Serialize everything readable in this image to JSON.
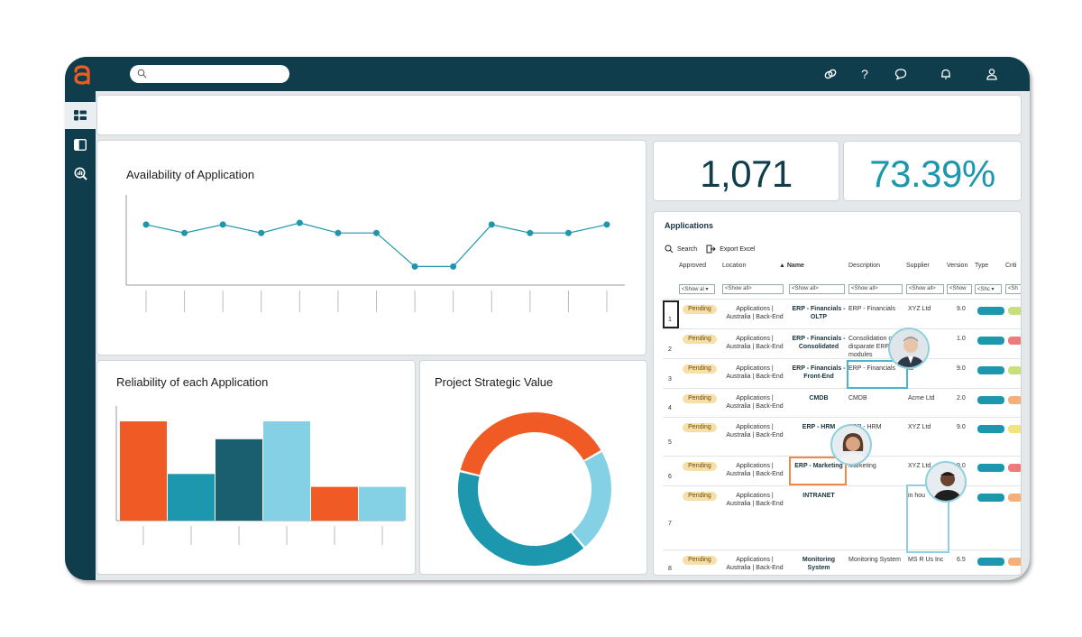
{
  "header": {
    "search_placeholder": "",
    "icons": [
      "link-icon",
      "help-icon",
      "chat-icon",
      "bell-icon",
      "user-icon"
    ]
  },
  "sidebar": {
    "items": [
      {
        "icon": "dashboard-icon",
        "active": true
      },
      {
        "icon": "panel-icon",
        "active": false
      },
      {
        "icon": "analytics-search-icon",
        "active": false
      }
    ]
  },
  "kpis": {
    "count": "1,071",
    "percent": "73.39%",
    "count_color": "#0f3d4c",
    "percent_color": "#1d97ad"
  },
  "availability": {
    "title": "Availability of Application",
    "chart_data": {
      "type": "line",
      "values": [
        0.7,
        0.6,
        0.7,
        0.6,
        0.72,
        0.6,
        0.6,
        0.2,
        0.2,
        0.7,
        0.6,
        0.6,
        0.7
      ],
      "ylim": [
        0,
        1
      ],
      "color": "#1d97ad"
    }
  },
  "reliability": {
    "title": "Reliability of each Application",
    "chart_data": {
      "type": "bar",
      "values": [
        100,
        47,
        82,
        100,
        34,
        34
      ],
      "ylim": [
        0,
        100
      ],
      "colors": [
        "#f05a24",
        "#1d97ad",
        "#1a5f70",
        "#84d1e6",
        "#f05a24",
        "#84d1e6"
      ]
    }
  },
  "strategic": {
    "title": "Project Strategic Value",
    "chart_data": {
      "type": "pie",
      "values": [
        38,
        22,
        40
      ],
      "colors": [
        "#f05a24",
        "#84d1e6",
        "#1d97ad"
      ]
    }
  },
  "applications": {
    "title": "Applications",
    "search_label": "Search",
    "export_label": "Export Excel",
    "columns": [
      "Approved",
      "Location",
      "Name",
      "Description",
      "Supplier",
      "Version",
      "Type",
      "Criti"
    ],
    "filters": [
      "<Show al",
      "<Show all>",
      "<Show all>",
      "<Show all>",
      "<Show all>",
      "<Show",
      "<Shc",
      "<Sh"
    ],
    "rows": [
      {
        "num": "1",
        "approved": "Pending",
        "location": "Applications | Australia | Back-End",
        "name": "ERP - Financials - OLTP",
        "description": "ERP - Financials",
        "supplier": "XYZ Ltd",
        "version": "9.0",
        "crit_color": "#c7e07a"
      },
      {
        "num": "2",
        "approved": "Pending",
        "location": "Applications | Australia | Back-End",
        "name": "ERP - Financials - Consolidated",
        "description": "Consolidation of disparate ERP modules",
        "supplier": "",
        "version": "1.0",
        "crit_color": "#f07a7a"
      },
      {
        "num": "3",
        "approved": "Pending",
        "location": "Applications | Australia | Back-End",
        "name": "ERP - Financials - Front-End",
        "description": "ERP - Financials",
        "supplier": "td",
        "version": "9.0",
        "crit_color": "#c7e07a"
      },
      {
        "num": "4",
        "approved": "Pending",
        "location": "Applications | Australia | Back-End",
        "name": "CMDB",
        "description": "CMDB",
        "supplier": "Acme Ltd",
        "version": "2.0",
        "crit_color": "#f5b07a"
      },
      {
        "num": "5",
        "approved": "Pending",
        "location": "Applications | Australia | Back-End",
        "name": "ERP - HRM",
        "description": "ERP - HRM",
        "supplier": "XYZ Ltd",
        "version": "9.0",
        "crit_color": "#f0e47a"
      },
      {
        "num": "6",
        "approved": "Pending",
        "location": "Applications | Australia | Back-End",
        "name": "ERP - Marketing",
        "description": "Marketing",
        "supplier": "XYZ Ltd",
        "version": "9.0",
        "crit_color": "#f07a7a"
      },
      {
        "num": "7",
        "approved": "Pending",
        "location": "Applications | Australia | Back-End",
        "name": "INTRANET",
        "description": "",
        "supplier": "in hou",
        "version": "",
        "crit_color": "#f5b07a"
      },
      {
        "num": "8",
        "approved": "Pending",
        "location": "Applications | Australia | Back-End",
        "name": "Monitoring System",
        "description": "Monitoring System",
        "supplier": "MS R Us Inc",
        "version": "6.5",
        "crit_color": "#f5b07a"
      }
    ]
  }
}
